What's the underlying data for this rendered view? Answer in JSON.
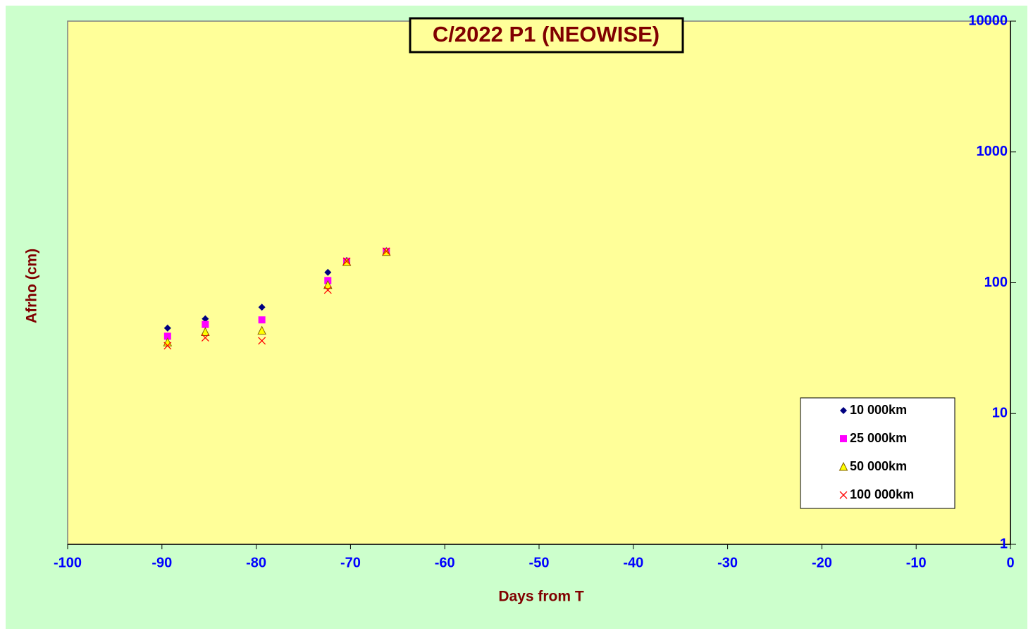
{
  "chart_data": {
    "type": "scatter",
    "title": "C/2022 P1 (NEOWISE)",
    "x_label": "Days from T",
    "y_label": "Afrho (cm)",
    "xlim": [
      -100,
      0
    ],
    "xticks": [
      -100,
      -90,
      -80,
      -70,
      -60,
      -50,
      -40,
      -30,
      -20,
      -10,
      0
    ],
    "ylim": [
      1,
      10000
    ],
    "yticks": [
      1,
      10,
      100,
      1000,
      10000
    ],
    "y_scale": "log",
    "y_axis_side": "right",
    "legend": "lower right",
    "series": [
      {
        "name": "10 000km",
        "color": "#000080",
        "marker": "diamond",
        "x": [
          -89.4,
          -85.4,
          -79.4,
          -72.4,
          -70.4,
          -66.2
        ],
        "values": [
          45,
          53,
          65,
          120,
          148,
          174
        ]
      },
      {
        "name": "25 000km",
        "color": "#ff00ff",
        "marker": "square",
        "x": [
          -89.4,
          -85.4,
          -79.4,
          -72.4,
          -70.4,
          -66.2
        ],
        "values": [
          39,
          48,
          52,
          104,
          146,
          174
        ]
      },
      {
        "name": "50 000km",
        "color": "#ffff00",
        "marker": "triangle",
        "x": [
          -89.4,
          -85.4,
          -79.4,
          -72.4,
          -70.4,
          -66.2
        ],
        "values": [
          35,
          42,
          43,
          96,
          144,
          172
        ]
      },
      {
        "name": "100 000km",
        "color": "#ff0000",
        "marker": "x",
        "x": [
          -89.4,
          -85.4,
          -79.4,
          -72.4,
          -70.4,
          -66.2
        ],
        "values": [
          33,
          38,
          36,
          88,
          146,
          174
        ]
      }
    ]
  }
}
